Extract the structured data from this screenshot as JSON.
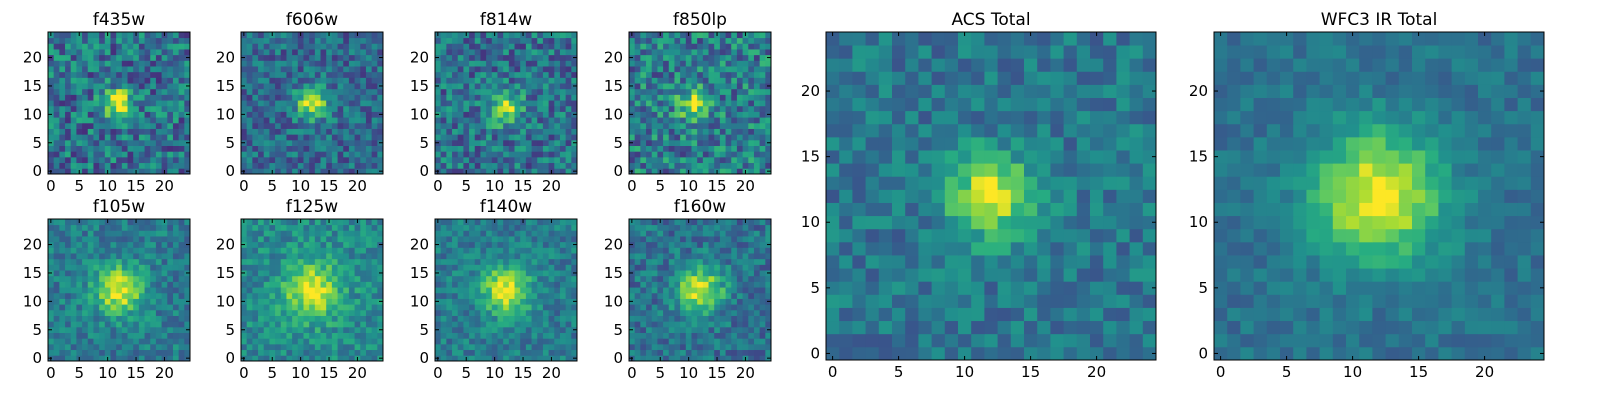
{
  "chart_data": [
    {
      "type": "heatmap",
      "title": "f435w",
      "x_ticks": [
        0,
        5,
        10,
        15,
        20
      ],
      "y_ticks": [
        0,
        5,
        10,
        15,
        20
      ],
      "xlim": [
        -0.5,
        24.5
      ],
      "ylim": [
        -0.5,
        24.5
      ],
      "grid_size": 25,
      "peak": [
        12,
        12
      ],
      "peak_sigma": 1.8,
      "peak_amp": 0.62,
      "noise": 0.5,
      "baseline": 0.38,
      "seed": 11
    },
    {
      "type": "heatmap",
      "title": "f606w",
      "x_ticks": [
        0,
        5,
        10,
        15,
        20
      ],
      "y_ticks": [
        0,
        5,
        10,
        15,
        20
      ],
      "xlim": [
        -0.5,
        24.5
      ],
      "ylim": [
        -0.5,
        24.5
      ],
      "grid_size": 25,
      "peak": [
        12,
        12
      ],
      "peak_sigma": 2.0,
      "peak_amp": 0.6,
      "noise": 0.38,
      "baseline": 0.35,
      "seed": 23
    },
    {
      "type": "heatmap",
      "title": "f814w",
      "x_ticks": [
        0,
        5,
        10,
        15,
        20
      ],
      "y_ticks": [
        0,
        5,
        10,
        15,
        20
      ],
      "xlim": [
        -0.5,
        24.5
      ],
      "ylim": [
        -0.5,
        24.5
      ],
      "grid_size": 25,
      "peak": [
        12,
        11
      ],
      "peak_sigma": 2.0,
      "peak_amp": 0.5,
      "noise": 0.45,
      "baseline": 0.38,
      "seed": 37
    },
    {
      "type": "heatmap",
      "title": "f850lp",
      "x_ticks": [
        0,
        5,
        10,
        15,
        20
      ],
      "y_ticks": [
        0,
        5,
        10,
        15,
        20
      ],
      "xlim": [
        -0.5,
        24.5
      ],
      "ylim": [
        -0.5,
        24.5
      ],
      "grid_size": 25,
      "peak": [
        11,
        12
      ],
      "peak_sigma": 2.0,
      "peak_amp": 0.45,
      "noise": 0.5,
      "baseline": 0.42,
      "seed": 41
    },
    {
      "type": "heatmap",
      "title": "f105w",
      "x_ticks": [
        0,
        5,
        10,
        15,
        20
      ],
      "y_ticks": [
        0,
        5,
        10,
        15,
        20
      ],
      "xlim": [
        -0.5,
        24.5
      ],
      "ylim": [
        -0.5,
        24.5
      ],
      "grid_size": 25,
      "peak": [
        12,
        12
      ],
      "peak_sigma": 3.0,
      "peak_amp": 0.55,
      "noise": 0.3,
      "baseline": 0.42,
      "seed": 53
    },
    {
      "type": "heatmap",
      "title": "f125w",
      "x_ticks": [
        0,
        5,
        10,
        15,
        20
      ],
      "y_ticks": [
        0,
        5,
        10,
        15,
        20
      ],
      "xlim": [
        -0.5,
        24.5
      ],
      "ylim": [
        -0.5,
        24.5
      ],
      "grid_size": 25,
      "peak": [
        12,
        12
      ],
      "peak_sigma": 3.4,
      "peak_amp": 0.5,
      "noise": 0.3,
      "baseline": 0.48,
      "seed": 67
    },
    {
      "type": "heatmap",
      "title": "f140w",
      "x_ticks": [
        0,
        5,
        10,
        15,
        20
      ],
      "y_ticks": [
        0,
        5,
        10,
        15,
        20
      ],
      "xlim": [
        -0.5,
        24.5
      ],
      "ylim": [
        -0.5,
        24.5
      ],
      "grid_size": 25,
      "peak": [
        12,
        12
      ],
      "peak_sigma": 3.0,
      "peak_amp": 0.55,
      "noise": 0.28,
      "baseline": 0.42,
      "seed": 71
    },
    {
      "type": "heatmap",
      "title": "f160w",
      "x_ticks": [
        0,
        5,
        10,
        15,
        20
      ],
      "y_ticks": [
        0,
        5,
        10,
        15,
        20
      ],
      "xlim": [
        -0.5,
        24.5
      ],
      "ylim": [
        -0.5,
        24.5
      ],
      "grid_size": 25,
      "peak": [
        12,
        12
      ],
      "peak_sigma": 2.8,
      "peak_amp": 0.6,
      "noise": 0.32,
      "baseline": 0.38,
      "seed": 83
    },
    {
      "type": "heatmap",
      "title": "ACS Total",
      "x_ticks": [
        0,
        5,
        10,
        15,
        20
      ],
      "y_ticks": [
        0,
        5,
        10,
        15,
        20
      ],
      "xlim": [
        -0.5,
        24.5
      ],
      "ylim": [
        -0.5,
        24.5
      ],
      "grid_size": 25,
      "peak": [
        12,
        12
      ],
      "peak_sigma": 2.2,
      "peak_amp": 0.58,
      "noise": 0.28,
      "baseline": 0.4,
      "seed": 97
    },
    {
      "type": "heatmap",
      "title": "WFC3 IR Total",
      "x_ticks": [
        0,
        5,
        10,
        15,
        20
      ],
      "y_ticks": [
        0,
        5,
        10,
        15,
        20
      ],
      "xlim": [
        -0.5,
        24.5
      ],
      "ylim": [
        -0.5,
        24.5
      ],
      "grid_size": 25,
      "peak": [
        12,
        12
      ],
      "peak_sigma": 3.4,
      "peak_amp": 0.62,
      "noise": 0.18,
      "baseline": 0.38,
      "seed": 101
    }
  ],
  "colormap": "viridis"
}
